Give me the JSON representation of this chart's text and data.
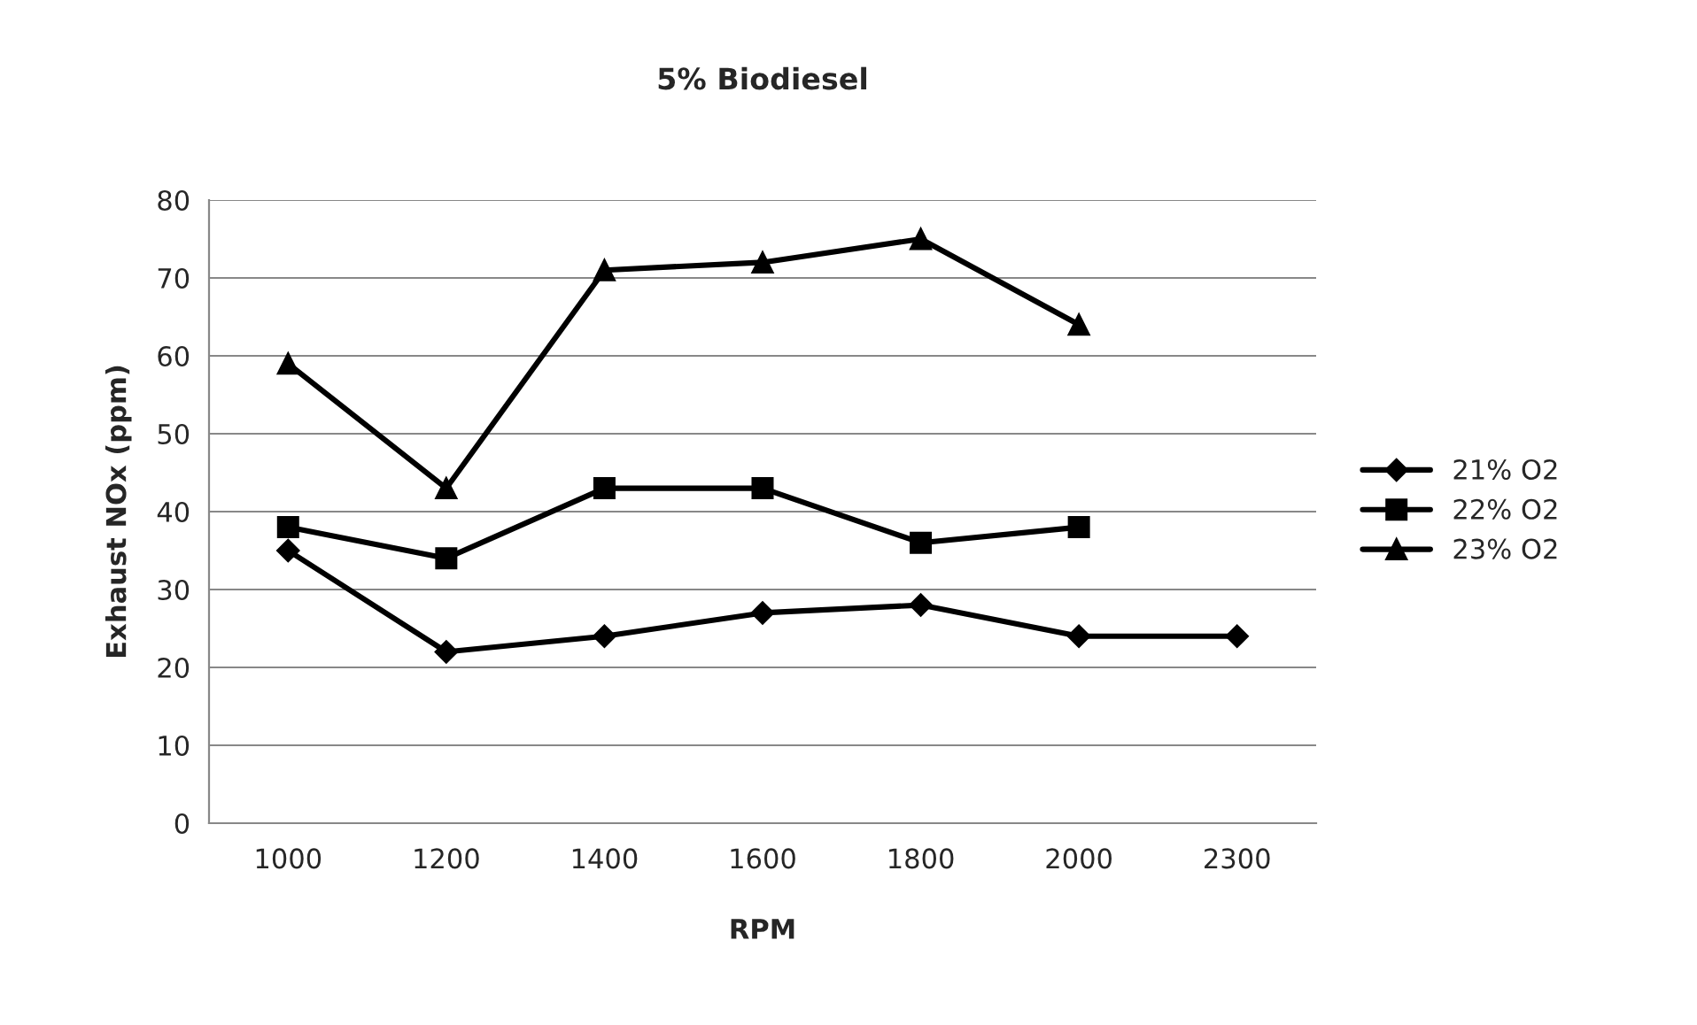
{
  "chart_data": {
    "type": "line",
    "title": "5% Biodiesel",
    "xlabel": "RPM",
    "ylabel": "Exhaust NOx (ppm)",
    "categories": [
      "1000",
      "1200",
      "1400",
      "1600",
      "1800",
      "2000",
      "2300"
    ],
    "series": [
      {
        "name": "21% O2",
        "color": "#000000",
        "marker": "diamond",
        "values": [
          35,
          22,
          24,
          27,
          28,
          24,
          24
        ]
      },
      {
        "name": "22% O2",
        "color": "#000000",
        "marker": "square",
        "values": [
          38,
          34,
          43,
          43,
          36,
          38,
          null
        ]
      },
      {
        "name": "23% O2",
        "color": "#000000",
        "marker": "triangle",
        "values": [
          59,
          43,
          71,
          72,
          75,
          64,
          null
        ]
      }
    ],
    "ylim": [
      0,
      80
    ],
    "yticks": [
      0,
      10,
      20,
      30,
      40,
      50,
      60,
      70,
      80
    ],
    "grid": "y",
    "legend": "right",
    "line_style": "solid"
  }
}
